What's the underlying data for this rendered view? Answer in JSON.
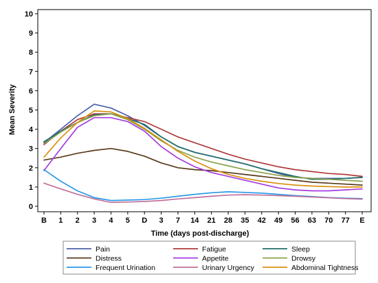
{
  "chart_data": {
    "type": "line",
    "title": "",
    "xlabel": "Time (days post-discharge)",
    "ylabel": "Mean Severity",
    "ylim": [
      0,
      10
    ],
    "yticks": [
      0,
      1,
      2,
      3,
      4,
      5,
      6,
      7,
      8,
      9,
      10
    ],
    "grid": false,
    "legend_position": "bottom",
    "categories": [
      "B",
      "1",
      "2",
      "3",
      "4",
      "5",
      "D",
      "3",
      "7",
      "14",
      "21",
      "28",
      "35",
      "42",
      "49",
      "56",
      "63",
      "70",
      "77",
      "E"
    ],
    "series": [
      {
        "name": "Pain",
        "color": "#4a5fa8",
        "values": [
          3.3,
          4.0,
          4.7,
          5.3,
          5.1,
          4.7,
          4.2,
          3.6,
          3.1,
          2.8,
          2.6,
          2.4,
          2.2,
          1.95,
          1.7,
          1.5,
          1.45,
          1.45,
          1.45,
          1.5
        ]
      },
      {
        "name": "Fatigue",
        "color": "#b03a3a",
        "values": [
          3.2,
          3.9,
          4.5,
          4.8,
          4.8,
          4.6,
          4.4,
          4.0,
          3.6,
          3.3,
          3.0,
          2.7,
          2.45,
          2.25,
          2.05,
          1.9,
          1.8,
          1.7,
          1.65,
          1.55
        ]
      },
      {
        "name": "Sleep",
        "color": "#1e6e6a",
        "values": [
          3.35,
          3.9,
          4.35,
          4.75,
          4.8,
          4.55,
          4.25,
          3.6,
          3.1,
          2.8,
          2.6,
          2.4,
          2.2,
          1.95,
          1.75,
          1.55,
          1.4,
          1.4,
          1.45,
          1.5
        ]
      },
      {
        "name": "Distress",
        "color": "#5a3a1a",
        "values": [
          2.4,
          2.55,
          2.75,
          2.9,
          3.0,
          2.85,
          2.6,
          2.25,
          2.0,
          1.9,
          1.85,
          1.75,
          1.65,
          1.55,
          1.45,
          1.35,
          1.25,
          1.2,
          1.15,
          1.1
        ]
      },
      {
        "name": "Appetite",
        "color": "#a33ce0",
        "values": [
          1.85,
          3.0,
          4.1,
          4.6,
          4.6,
          4.4,
          3.9,
          3.1,
          2.5,
          2.05,
          1.75,
          1.55,
          1.35,
          1.15,
          0.95,
          0.85,
          0.8,
          0.8,
          0.85,
          0.9
        ]
      },
      {
        "name": "Drowsy",
        "color": "#8aa34a",
        "values": [
          3.25,
          3.85,
          4.35,
          4.7,
          4.8,
          4.5,
          4.0,
          3.4,
          2.9,
          2.55,
          2.3,
          2.1,
          1.9,
          1.75,
          1.6,
          1.5,
          1.45,
          1.4,
          1.35,
          1.3
        ]
      },
      {
        "name": "Frequent Urination",
        "color": "#2a9ae8",
        "values": [
          1.9,
          1.3,
          0.8,
          0.45,
          0.3,
          0.32,
          0.35,
          0.42,
          0.52,
          0.62,
          0.7,
          0.75,
          0.72,
          0.68,
          0.62,
          0.55,
          0.5,
          0.45,
          0.42,
          0.4
        ]
      },
      {
        "name": "Urinary Urgency",
        "color": "#c0709a",
        "values": [
          1.2,
          0.9,
          0.62,
          0.38,
          0.2,
          0.22,
          0.25,
          0.3,
          0.38,
          0.45,
          0.52,
          0.58,
          0.6,
          0.58,
          0.55,
          0.52,
          0.48,
          0.44,
          0.4,
          0.37
        ]
      },
      {
        "name": "Abdominal Tightness",
        "color": "#d9900f",
        "values": [
          2.55,
          3.55,
          4.35,
          4.95,
          4.9,
          4.55,
          4.05,
          3.45,
          2.85,
          2.35,
          1.95,
          1.65,
          1.45,
          1.3,
          1.18,
          1.1,
          1.05,
          1.02,
          1.0,
          1.0
        ]
      }
    ]
  },
  "legend_rows": [
    [
      "Pain",
      "Fatigue",
      "Sleep"
    ],
    [
      "Distress",
      "Appetite",
      "Drowsy"
    ],
    [
      "Frequent Urination",
      "Urinary Urgency",
      "Abdominal Tightness"
    ]
  ]
}
